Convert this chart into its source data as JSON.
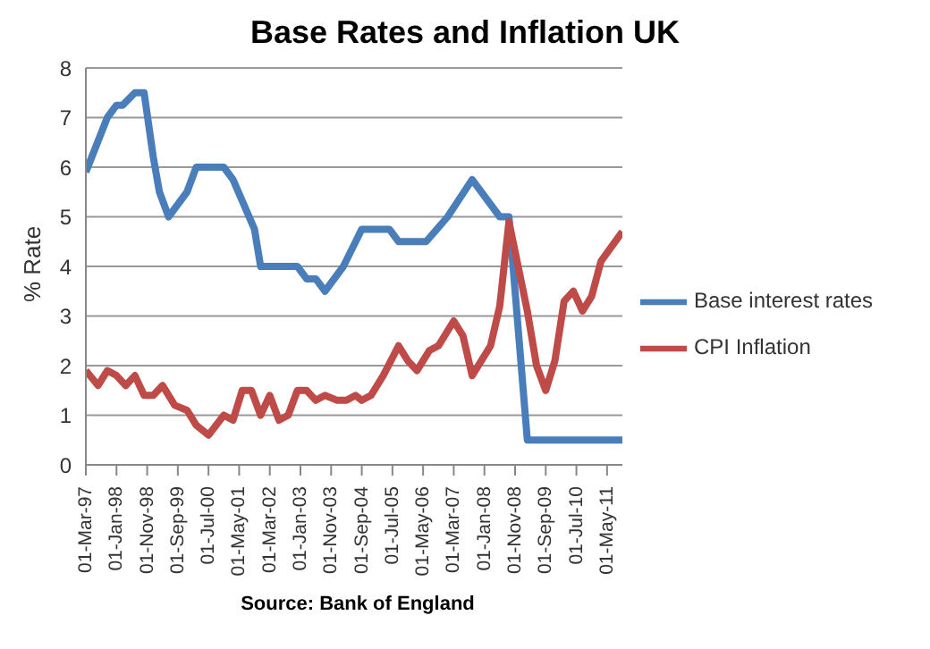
{
  "chart_data": {
    "type": "line",
    "title": "Base Rates and Inflation UK",
    "ylabel": "% Rate",
    "annotations": [
      "Source: Bank of England"
    ],
    "series": [
      {
        "name": "Base interest rates",
        "color": "#4a7ebb",
        "x": [
          "1997-03",
          "1997-10",
          "1998-01",
          "1998-03",
          "1998-07",
          "1998-10",
          "1999-01",
          "1999-03",
          "1999-06",
          "1999-12",
          "2000-03",
          "2000-12",
          "2001-03",
          "2001-10",
          "2001-12",
          "2002-12",
          "2003-03",
          "2003-06",
          "2003-09",
          "2004-03",
          "2004-07",
          "2004-09",
          "2005-06",
          "2005-09",
          "2006-06",
          "2007-01",
          "2007-09",
          "2008-06",
          "2008-09",
          "2009-03",
          "2011-10"
        ],
        "values": [
          5.9,
          7.0,
          7.25,
          7.25,
          7.5,
          7.5,
          6.2,
          5.5,
          5.0,
          5.5,
          6.0,
          6.0,
          5.75,
          4.75,
          4.0,
          4.0,
          3.75,
          3.75,
          3.5,
          4.0,
          4.5,
          4.75,
          4.75,
          4.5,
          4.5,
          5.0,
          5.75,
          5.0,
          5.0,
          0.5,
          0.5
        ]
      },
      {
        "name": "CPI Inflation",
        "color": "#be4b48",
        "x": [
          "1997-03",
          "1997-07",
          "1997-10",
          "1998-01",
          "1998-04",
          "1998-07",
          "1998-10",
          "1999-01",
          "1999-04",
          "1999-08",
          "1999-12",
          "2000-03",
          "2000-07",
          "2000-12",
          "2001-03",
          "2001-06",
          "2001-09",
          "2001-12",
          "2002-03",
          "2002-06",
          "2002-09",
          "2002-12",
          "2003-03",
          "2003-06",
          "2003-09",
          "2004-01",
          "2004-04",
          "2004-07",
          "2004-09",
          "2004-12",
          "2005-04",
          "2005-09",
          "2005-12",
          "2006-03",
          "2006-07",
          "2006-10",
          "2007-03",
          "2007-06",
          "2007-09",
          "2008-03",
          "2008-06",
          "2008-09",
          "2009-03",
          "2009-06",
          "2009-09",
          "2009-12",
          "2010-03",
          "2010-06",
          "2010-09",
          "2010-12",
          "2011-03",
          "2011-10"
        ],
        "values": [
          1.9,
          1.6,
          1.9,
          1.8,
          1.6,
          1.8,
          1.4,
          1.4,
          1.6,
          1.2,
          1.1,
          0.8,
          0.6,
          1.0,
          0.9,
          1.5,
          1.5,
          1.0,
          1.4,
          0.9,
          1.0,
          1.5,
          1.5,
          1.3,
          1.4,
          1.3,
          1.3,
          1.4,
          1.3,
          1.4,
          1.8,
          2.4,
          2.1,
          1.9,
          2.3,
          2.4,
          2.9,
          2.6,
          1.8,
          2.4,
          3.2,
          4.9,
          3.1,
          2.0,
          1.5,
          2.1,
          3.3,
          3.5,
          3.1,
          3.4,
          4.1,
          4.7
        ]
      }
    ],
    "xlim": [
      "1997-03",
      "2011-10"
    ],
    "xticks": [
      {
        "value": "1997-03",
        "label": "01-Mar-97"
      },
      {
        "value": "1998-01",
        "label": "01-Jan-98"
      },
      {
        "value": "1998-11",
        "label": "01-Nov-98"
      },
      {
        "value": "1999-09",
        "label": "01-Sep-99"
      },
      {
        "value": "2000-07",
        "label": "01-Jul-00"
      },
      {
        "value": "2001-05",
        "label": "01-May-01"
      },
      {
        "value": "2002-03",
        "label": "01-Mar-02"
      },
      {
        "value": "2003-01",
        "label": "01-Jan-03"
      },
      {
        "value": "2003-11",
        "label": "01-Nov-03"
      },
      {
        "value": "2004-09",
        "label": "01-Sep-04"
      },
      {
        "value": "2005-07",
        "label": "01-Jul-05"
      },
      {
        "value": "2006-05",
        "label": "01-May-06"
      },
      {
        "value": "2007-03",
        "label": "01-Mar-07"
      },
      {
        "value": "2008-01",
        "label": "01-Jan-08"
      },
      {
        "value": "2008-11",
        "label": "01-Nov-08"
      },
      {
        "value": "2009-09",
        "label": "01-Sep-09"
      },
      {
        "value": "2010-07",
        "label": "01-Jul-10"
      },
      {
        "value": "2011-05",
        "label": "01-May-11"
      }
    ],
    "ylim": [
      0,
      8
    ],
    "yticks": [
      0,
      1,
      2,
      3,
      4,
      5,
      6,
      7,
      8
    ],
    "grid": "y",
    "legend": "right",
    "marker": "none",
    "line_style": "solid"
  }
}
